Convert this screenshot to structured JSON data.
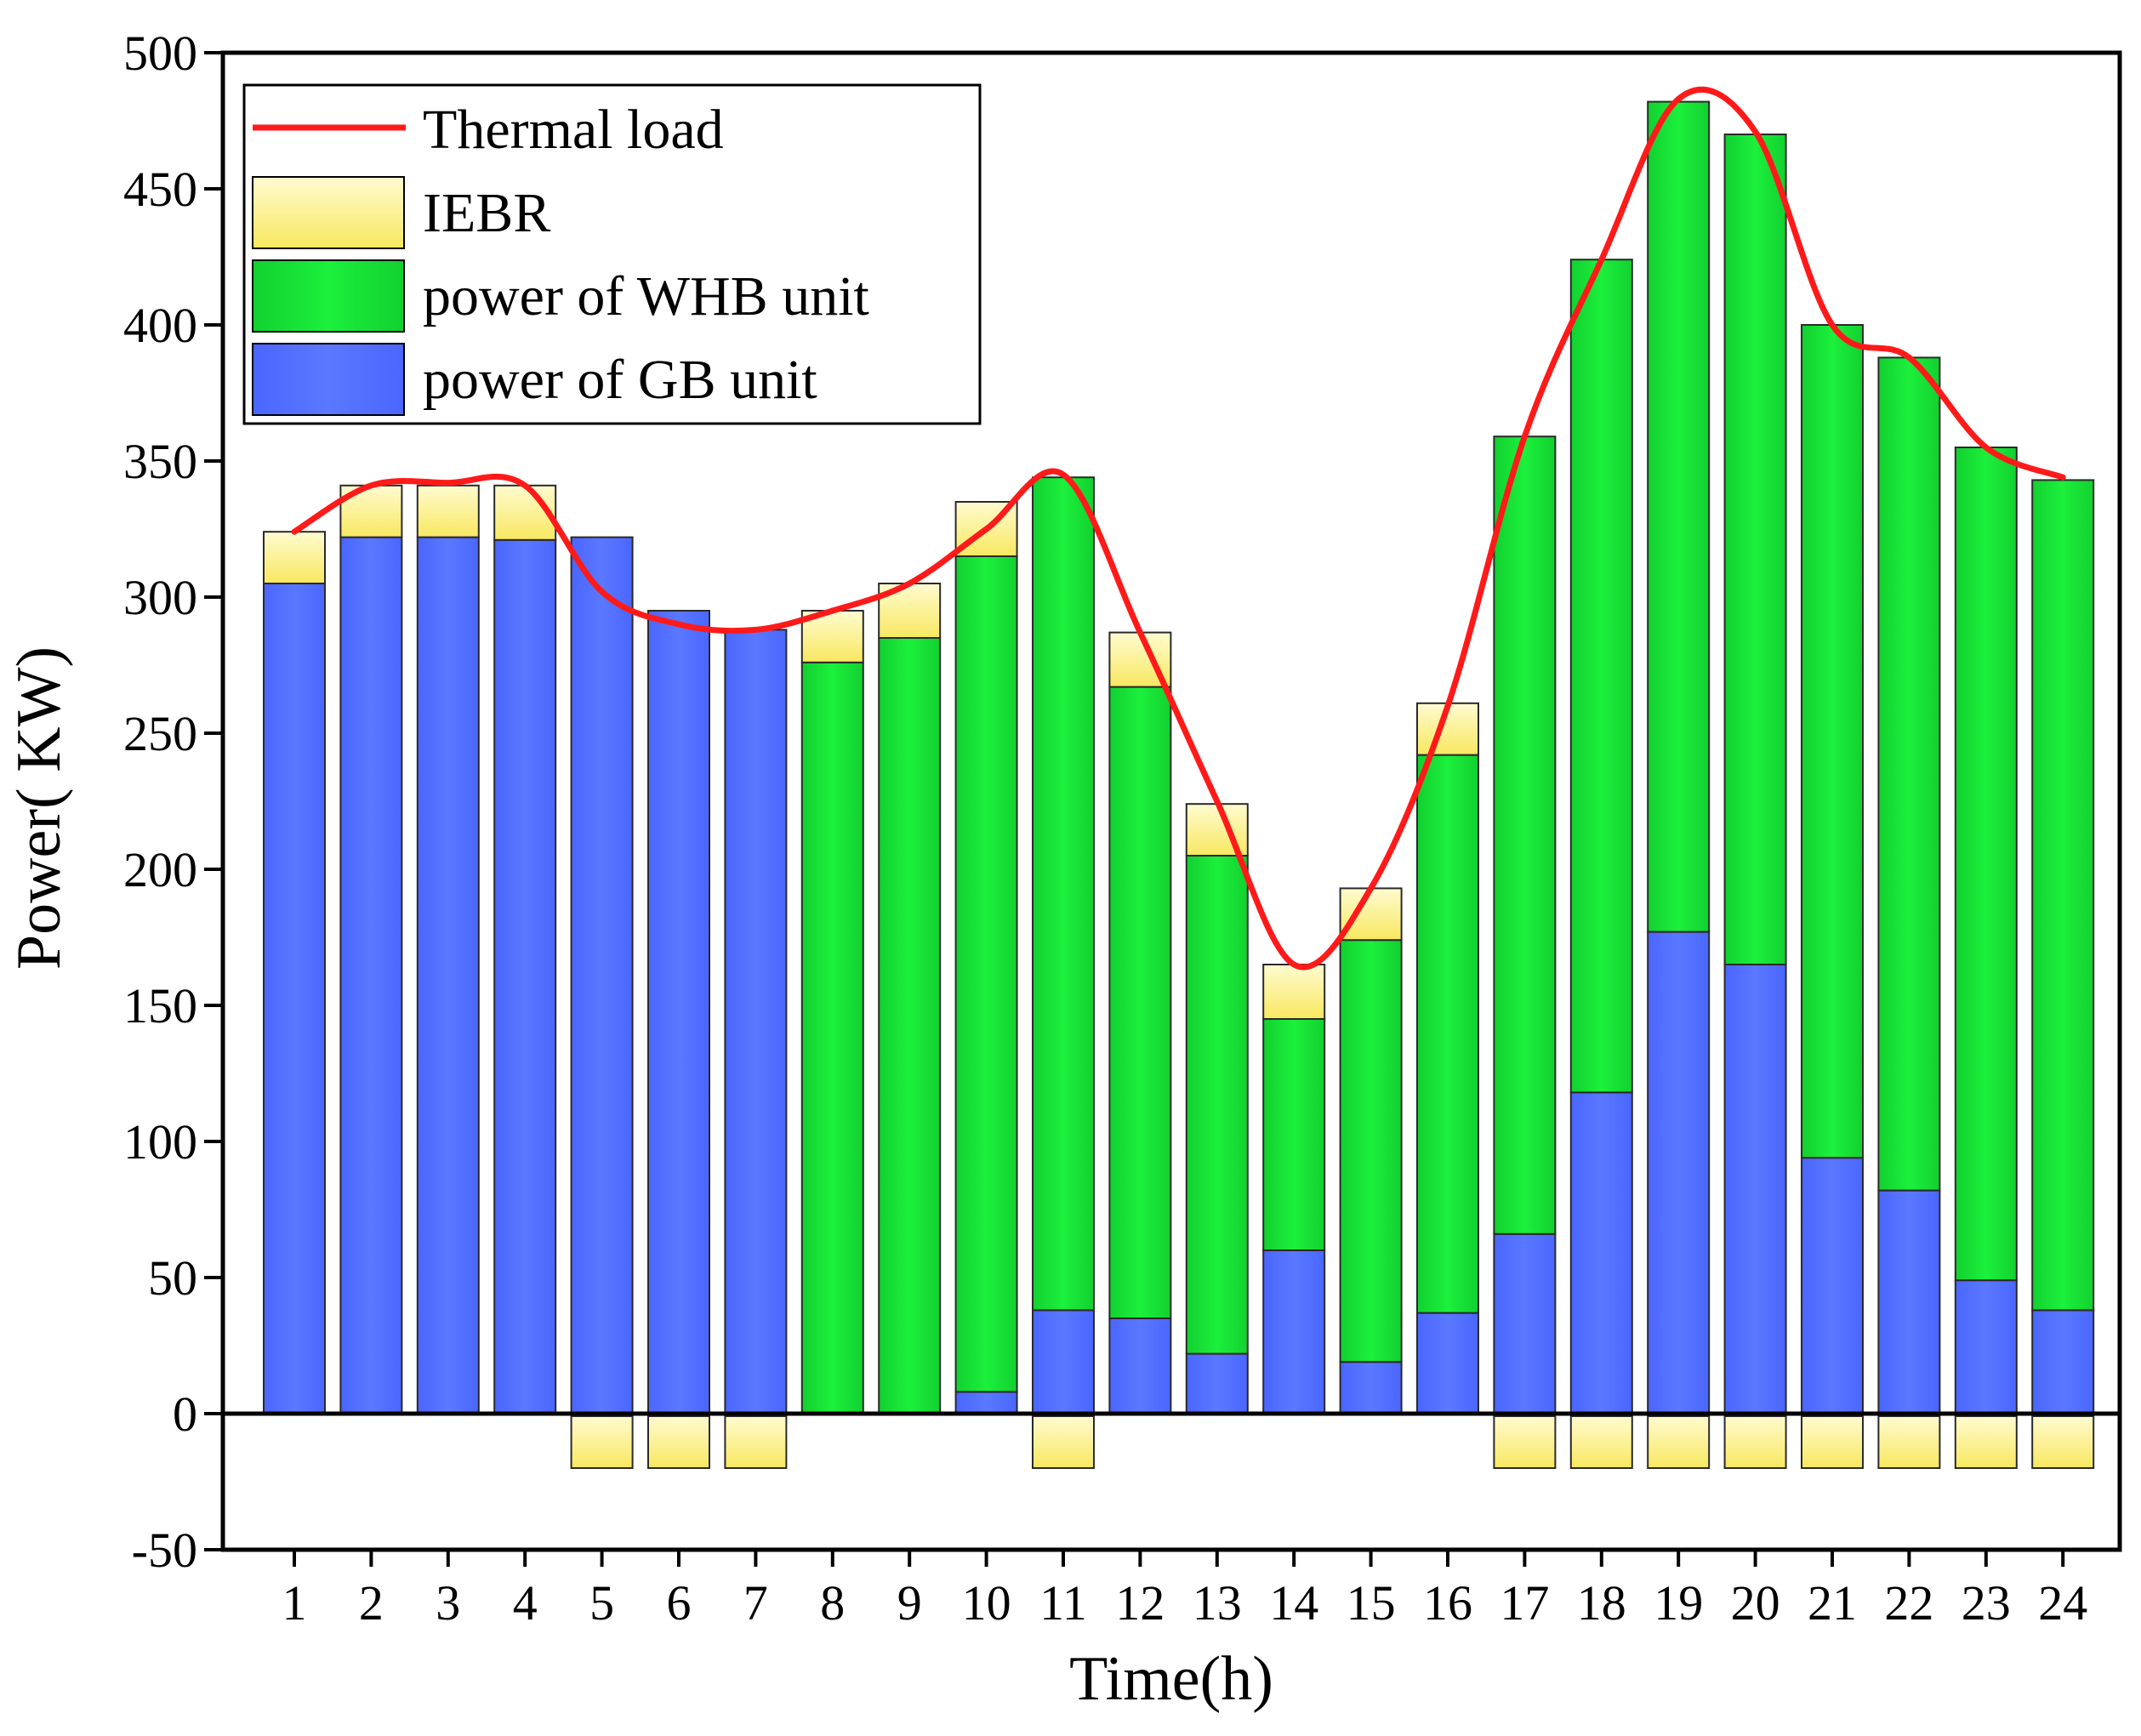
{
  "chart_data": {
    "type": "bar",
    "title": "",
    "xlabel": "Time(h)",
    "ylabel": "Power( KW)",
    "ylim": [
      -50,
      500
    ],
    "yticks": [
      -50,
      0,
      50,
      100,
      150,
      200,
      250,
      300,
      350,
      400,
      450,
      500
    ],
    "categories": [
      "1",
      "2",
      "3",
      "4",
      "5",
      "6",
      "7",
      "8",
      "9",
      "10",
      "11",
      "12",
      "13",
      "14",
      "15",
      "16",
      "17",
      "18",
      "19",
      "20",
      "21",
      "22",
      "23",
      "24"
    ],
    "series": [
      {
        "name": "power of GB unit",
        "kind": "stacked-bar",
        "color": "#5572ff",
        "values": [
          305,
          322,
          322,
          321,
          322,
          295,
          288,
          0,
          0,
          8,
          38,
          35,
          22,
          60,
          19,
          37,
          66,
          118,
          177,
          165,
          94,
          82,
          49,
          38
        ]
      },
      {
        "name": "power of WHB unit",
        "kind": "stacked-bar",
        "color": "#16e236",
        "values": [
          0,
          0,
          0,
          0,
          0,
          0,
          0,
          276,
          285,
          307,
          306,
          232,
          183,
          85,
          155,
          205,
          293,
          306,
          305,
          305,
          306,
          306,
          306,
          305
        ]
      },
      {
        "name": "IEBR",
        "kind": "stacked-bar",
        "color": "#fff8a0",
        "values": [
          19,
          19,
          19,
          20,
          -20,
          -20,
          -20,
          19,
          20,
          20,
          -20,
          20,
          19,
          20,
          19,
          19,
          -20,
          -20,
          -20,
          -20,
          -20,
          -20,
          -20,
          -20
        ]
      },
      {
        "name": "Thermal load",
        "kind": "line",
        "color": "#ff1a1a",
        "values": [
          324,
          341,
          342,
          341,
          302,
          290,
          288,
          295,
          305,
          325,
          345,
          287,
          225,
          165,
          193,
          260,
          359,
          424,
          483,
          471,
          400,
          388,
          355,
          344
        ]
      }
    ],
    "legend": {
      "position": "top-left",
      "order": [
        "Thermal load",
        "IEBR",
        "power of WHB unit",
        "power of GB unit"
      ]
    }
  }
}
